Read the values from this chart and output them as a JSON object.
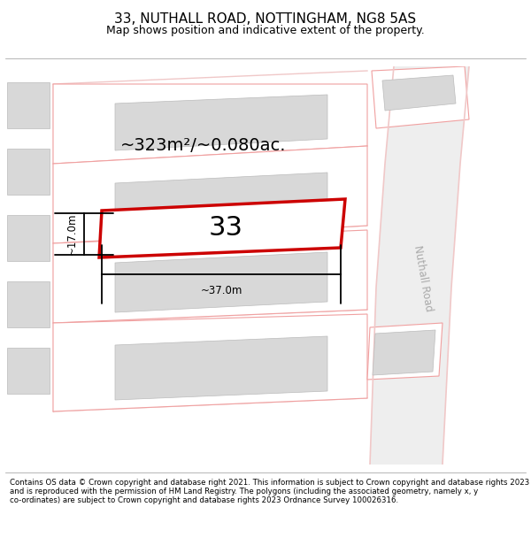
{
  "title_line1": "33, NUTHALL ROAD, NOTTINGHAM, NG8 5AS",
  "title_line2": "Map shows position and indicative extent of the property.",
  "footer_text": "Contains OS data © Crown copyright and database right 2021. This information is subject to Crown copyright and database rights 2023 and is reproduced with the permission of HM Land Registry. The polygons (including the associated geometry, namely x, y co-ordinates) are subject to Crown copyright and database rights 2023 Ordnance Survey 100026316.",
  "background_color": "#ffffff",
  "map_bg": "#ffffff",
  "road_color": "#f0c8c8",
  "plot_outline_color": "#f0a0a0",
  "highlight_color": "#cc0000",
  "building_fill": "#d8d8d8",
  "road_label": "Nuthall Road",
  "area_label": "~323m²/~0.080ac.",
  "number_label": "33",
  "dim_width": "~37.0m",
  "dim_height": "~17.0m"
}
